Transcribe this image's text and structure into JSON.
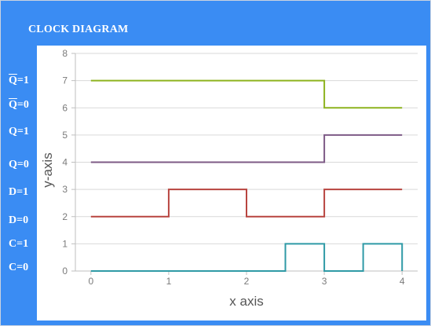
{
  "header": {
    "title": "CLOCK DIAGRAM"
  },
  "state_labels": [
    {
      "base": "Q",
      "overline": true,
      "suffix": "=1"
    },
    {
      "base": "Q",
      "overline": true,
      "suffix": "=0"
    },
    {
      "base": "Q",
      "overline": false,
      "suffix": "=1"
    },
    {
      "base": "Q",
      "overline": false,
      "suffix": "=0"
    },
    {
      "base": "D",
      "overline": false,
      "suffix": "=1"
    },
    {
      "base": "D",
      "overline": false,
      "suffix": "=0"
    },
    {
      "base": "C",
      "overline": false,
      "suffix": "=1"
    },
    {
      "base": "C",
      "overline": false,
      "suffix": "=0"
    }
  ],
  "chart_data": {
    "type": "line",
    "xlabel": "x axis",
    "ylabel": "y-axis",
    "xlim": [
      -0.2,
      4.2
    ],
    "ylim": [
      0,
      8
    ],
    "xticks": [
      0,
      1,
      2,
      3,
      4
    ],
    "yticks": [
      0,
      1,
      2,
      3,
      4,
      5,
      6,
      7,
      8
    ],
    "grid": "horizontal",
    "legend": "none",
    "series": [
      {
        "color": "#2f9aa6",
        "x": [
          0,
          2.5,
          2.5,
          3,
          3,
          3.5,
          3.5,
          4,
          4
        ],
        "y": [
          0,
          0,
          1,
          1,
          0,
          0,
          1,
          1,
          0
        ]
      },
      {
        "color": "#b8443f",
        "x": [
          0,
          1,
          1,
          2,
          2,
          3,
          3,
          4
        ],
        "y": [
          2,
          2,
          3,
          3,
          2,
          2,
          3,
          3
        ]
      },
      {
        "color": "#7d5a86",
        "x": [
          0,
          3,
          3,
          4
        ],
        "y": [
          4,
          4,
          5,
          5
        ]
      },
      {
        "color": "#8db31f",
        "x": [
          0,
          3,
          3,
          4
        ],
        "y": [
          7,
          7,
          6,
          6
        ]
      }
    ]
  }
}
